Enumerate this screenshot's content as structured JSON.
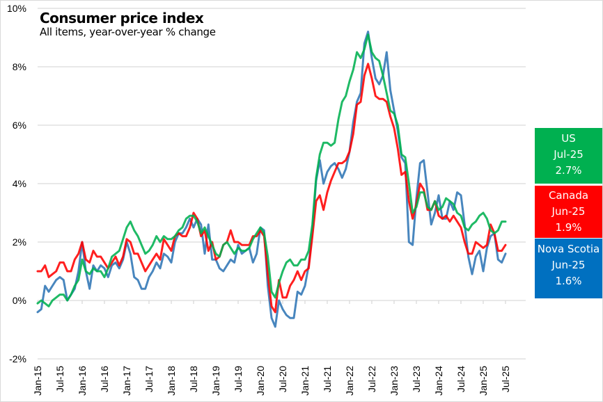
{
  "chart_data": {
    "type": "line",
    "title": "Consumer price index",
    "subtitle": "All items, year-over-year % change",
    "xlabel": "",
    "ylabel": "",
    "ylim": [
      -2,
      10
    ],
    "y_ticks": [
      "-2%",
      "0%",
      "2%",
      "4%",
      "6%",
      "8%",
      "10%"
    ],
    "y_tick_values": [
      -2,
      0,
      2,
      4,
      6,
      8,
      10
    ],
    "x_tick_labels": [
      "Jan-15",
      "Jul-15",
      "Jan-16",
      "Jul-16",
      "Jan-17",
      "Jul-17",
      "Jan-18",
      "Jul-18",
      "Jan-19",
      "Jul-19",
      "Jan-20",
      "Jul-20",
      "Jan-21",
      "Jul-21",
      "Jan-22",
      "Jul-22",
      "Jan-23",
      "Jul-23",
      "Jan-24",
      "Jul-24",
      "Jan-25",
      "Jul-25"
    ],
    "x_start": "Jan-15",
    "grid": true,
    "legend_position": "right",
    "series": [
      {
        "name": "US",
        "color": "#00b050",
        "latest_period": "Jul-25",
        "latest_value": "2.7%",
        "values": [
          -0.1,
          0.0,
          -0.1,
          -0.2,
          0.0,
          0.1,
          0.2,
          0.2,
          0.0,
          0.2,
          0.5,
          0.7,
          1.4,
          1.0,
          0.9,
          1.1,
          1.0,
          1.0,
          0.8,
          1.1,
          1.5,
          1.6,
          1.7,
          2.1,
          2.5,
          2.7,
          2.4,
          2.2,
          1.9,
          1.6,
          1.7,
          1.9,
          2.2,
          2.0,
          2.2,
          2.1,
          2.1,
          2.2,
          2.4,
          2.5,
          2.8,
          2.9,
          2.9,
          2.7,
          2.3,
          2.5,
          2.2,
          1.9,
          1.6,
          1.5,
          1.9,
          2.0,
          1.8,
          1.6,
          1.8,
          1.7,
          1.7,
          1.8,
          2.1,
          2.3,
          2.5,
          2.3,
          1.5,
          0.3,
          0.1,
          0.6,
          1.0,
          1.3,
          1.4,
          1.2,
          1.2,
          1.4,
          1.4,
          1.7,
          2.6,
          4.2,
          5.0,
          5.4,
          5.4,
          5.3,
          5.4,
          6.2,
          6.8,
          7.0,
          7.5,
          7.9,
          8.5,
          8.3,
          8.6,
          9.1,
          8.5,
          8.3,
          8.2,
          7.7,
          7.1,
          6.5,
          6.4,
          6.0,
          5.0,
          4.9,
          4.0,
          3.0,
          3.2,
          3.7,
          3.7,
          3.2,
          3.1,
          3.4,
          3.1,
          3.2,
          3.5,
          3.4,
          3.3,
          3.0,
          2.9,
          2.5,
          2.4,
          2.6,
          2.7,
          2.9,
          3.0,
          2.8,
          2.4,
          2.3,
          2.4,
          2.7,
          2.7
        ]
      },
      {
        "name": "Canada",
        "color": "#ff0000",
        "latest_period": "Jun-25",
        "latest_value": "1.9%",
        "values": [
          1.0,
          1.0,
          1.2,
          0.8,
          0.9,
          1.0,
          1.3,
          1.3,
          1.0,
          1.0,
          1.4,
          1.6,
          2.0,
          1.4,
          1.3,
          1.7,
          1.5,
          1.5,
          1.3,
          1.1,
          1.3,
          1.5,
          1.2,
          1.5,
          2.1,
          2.0,
          1.6,
          1.6,
          1.3,
          1.0,
          1.2,
          1.4,
          1.6,
          1.4,
          2.1,
          1.9,
          1.7,
          2.2,
          2.3,
          2.2,
          2.2,
          2.5,
          3.0,
          2.8,
          2.2,
          2.4,
          1.7,
          2.0,
          1.4,
          1.5,
          1.9,
          2.0,
          2.4,
          2.0,
          2.0,
          1.9,
          1.9,
          1.9,
          2.2,
          2.2,
          2.4,
          2.2,
          0.9,
          -0.2,
          -0.4,
          0.7,
          0.1,
          0.1,
          0.5,
          0.7,
          1.0,
          0.7,
          1.0,
          1.1,
          2.2,
          3.4,
          3.6,
          3.1,
          3.7,
          4.1,
          4.4,
          4.7,
          4.7,
          4.8,
          5.1,
          5.7,
          6.7,
          6.8,
          7.7,
          8.1,
          7.6,
          7.0,
          6.9,
          6.9,
          6.8,
          6.3,
          5.9,
          5.2,
          4.3,
          4.4,
          3.4,
          2.8,
          3.3,
          4.0,
          3.8,
          3.1,
          3.1,
          3.4,
          2.9,
          2.8,
          2.9,
          2.7,
          2.9,
          2.7,
          2.5,
          2.0,
          1.6,
          1.6,
          2.0,
          1.9,
          1.8,
          1.9,
          2.6,
          2.3,
          1.7,
          1.7,
          1.9
        ]
      },
      {
        "name": "Nova Scotia",
        "color": "#2f75b5",
        "latest_period": "Jun-25",
        "latest_value": "1.6%",
        "values": [
          -0.4,
          -0.3,
          0.5,
          0.3,
          0.5,
          0.7,
          0.8,
          0.7,
          0.0,
          0.2,
          0.4,
          1.0,
          2.0,
          1.0,
          0.4,
          1.2,
          1.0,
          1.2,
          1.1,
          0.8,
          1.2,
          1.3,
          1.1,
          1.4,
          2.0,
          1.6,
          0.8,
          0.7,
          0.4,
          0.4,
          0.8,
          1.0,
          1.3,
          1.1,
          1.6,
          1.5,
          1.3,
          2.0,
          2.3,
          2.3,
          2.5,
          2.8,
          2.5,
          2.8,
          2.6,
          1.6,
          2.6,
          1.4,
          1.4,
          1.1,
          1.0,
          1.2,
          1.4,
          1.3,
          1.9,
          1.6,
          1.7,
          1.8,
          1.3,
          1.6,
          2.5,
          2.4,
          0.5,
          -0.6,
          -0.9,
          0.0,
          -0.3,
          -0.5,
          -0.6,
          -0.6,
          0.3,
          0.2,
          0.5,
          1.2,
          2.4,
          4.1,
          4.8,
          4.0,
          4.4,
          4.6,
          4.7,
          4.5,
          4.2,
          4.5,
          5.1,
          6.1,
          6.8,
          7.1,
          8.8,
          9.2,
          8.3,
          7.6,
          7.4,
          7.7,
          8.5,
          7.2,
          6.5,
          5.8,
          4.9,
          4.7,
          2.0,
          1.9,
          3.5,
          4.7,
          4.8,
          3.7,
          2.6,
          3.0,
          3.6,
          2.8,
          2.8,
          3.4,
          3.1,
          3.7,
          3.6,
          2.6,
          1.5,
          0.9,
          1.5,
          1.7,
          1.0,
          1.8,
          2.2,
          2.3,
          1.4,
          1.3,
          1.6
        ]
      }
    ]
  }
}
